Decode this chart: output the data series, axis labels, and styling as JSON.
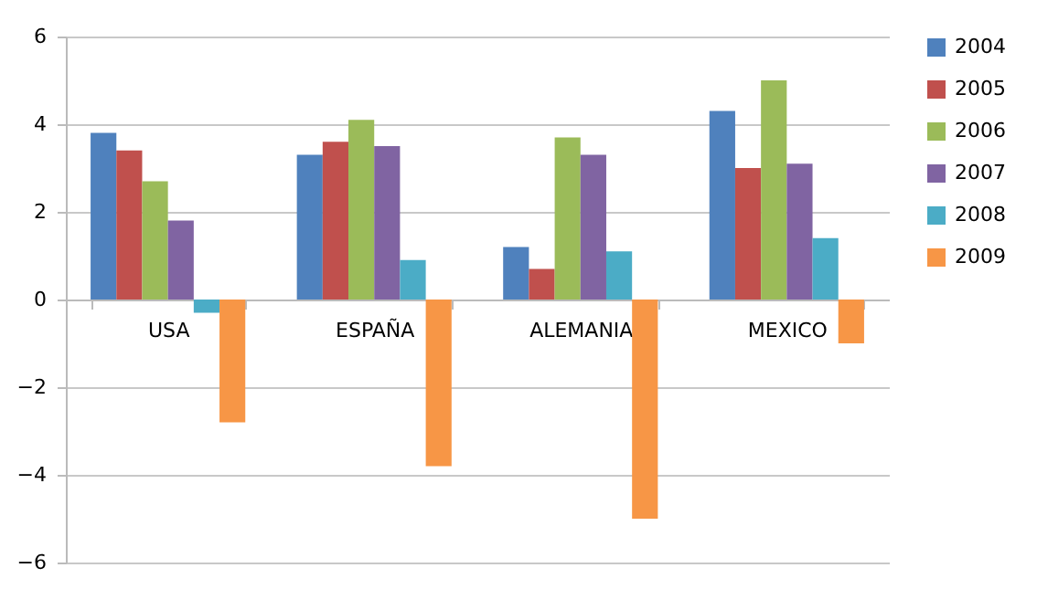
{
  "chart_data": {
    "type": "bar",
    "categories": [
      "USA",
      "ESPAÑA",
      "ALEMANIA",
      "MEXICO"
    ],
    "series": [
      {
        "name": "2004",
        "color": "#4f81bd",
        "values": [
          3.8,
          3.3,
          1.2,
          4.3
        ]
      },
      {
        "name": "2005",
        "color": "#c0504d",
        "values": [
          3.4,
          3.6,
          0.7,
          3.0
        ]
      },
      {
        "name": "2006",
        "color": "#9bbb59",
        "values": [
          2.7,
          4.1,
          3.7,
          5.0
        ]
      },
      {
        "name": "2007",
        "color": "#8064a2",
        "values": [
          1.8,
          3.5,
          3.3,
          3.1
        ]
      },
      {
        "name": "2008",
        "color": "#4bacc6",
        "values": [
          -0.3,
          0.9,
          1.1,
          1.4
        ]
      },
      {
        "name": "2009",
        "color": "#f79646",
        "values": [
          -2.8,
          -3.8,
          -5.0,
          -1.0
        ]
      }
    ],
    "ylim": [
      -6,
      6
    ],
    "yticks": [
      -6,
      -4,
      -2,
      0,
      2,
      4,
      6
    ],
    "grid": "y",
    "legend": "right"
  }
}
